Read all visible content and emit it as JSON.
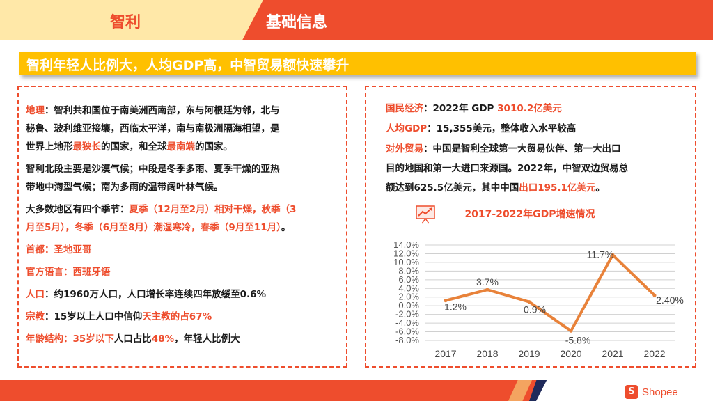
{
  "header": {
    "country": "智利",
    "section": "基础信息"
  },
  "headline": "智利年轻人比例大，人均GDP高，中智贸易额快速攀升",
  "left": {
    "geo": {
      "label": "地理",
      "t1": "：智利共和国位于南美洲西南部，东与阿根廷为邻，北与",
      "t2": "秘鲁、玻利维亚接壤，西临太平洋，南与南极洲隔海相望，是",
      "t3a": "世界上地形",
      "t3b": "最狭长",
      "t3c": "的国家，和全球",
      "t3d": "最南端",
      "t3e": "的国家。"
    },
    "climate": {
      "l1": "智利北段主要是沙漠气候；中段是冬季多雨、夏季干燥的亚热",
      "l2": "带地中海型气候；南为多雨的温带阔叶林气候。"
    },
    "seasons": {
      "l1a": "大多数地区有四个季节：",
      "l1b": "夏季（12月至2月）相对干燥，秋季（3",
      "l2a": "月至5月），冬季（6月至8月）潮湿寒冷，春季（9月至11月）",
      "l2b": "。"
    },
    "capital": {
      "label": "首都",
      "value": "：圣地亚哥"
    },
    "language": {
      "label": "官方语言",
      "value": "：西班牙语"
    },
    "population": {
      "label": "人口",
      "value": "：约1960万人口，人口增长率连续四年放缓至0.6%"
    },
    "religion": {
      "label": "宗教",
      "t1": "：15岁以上人口中信仰",
      "t2": "天主教的占67%"
    },
    "age": {
      "label": "年龄结构",
      "t1": "：",
      "t2": "35岁以下",
      "t3": "人口占比",
      "t4": "48%",
      "t5": "，年轻人比例大"
    }
  },
  "right": {
    "economy": {
      "label": "国民经济",
      "t1": "：2022年 GDP ",
      "t2": "3010.2亿美元"
    },
    "percapita": {
      "label": "人均GDP",
      "t1": "：15,355美元，整体收入水平较高"
    },
    "trade": {
      "label": "对外贸易",
      "t1": "：中国是智利全球第一大贸易伙伴、第一大出口",
      "l2": "目的地国和第一大进口来源国。2022年，中智双边贸易总",
      "l3a": "额达到625.5亿美元，其中中国",
      "l3b": "出口195.1亿美元",
      "l3c": "。"
    }
  },
  "chart_data": {
    "type": "line",
    "title": "2017-2022年GDP增速情况",
    "categories": [
      "2017",
      "2018",
      "2019",
      "2020",
      "2021",
      "2022"
    ],
    "values": [
      1.2,
      3.7,
      0.9,
      -5.8,
      11.7,
      2.4
    ],
    "data_labels": [
      "1.2%",
      "3.7%",
      "0.9%",
      "-5.8%",
      "11.7%",
      "2.40%"
    ],
    "yticks": [
      "14.0%",
      "12.0%",
      "10.0%",
      "8.0%",
      "6.0%",
      "4.0%",
      "2.0%",
      "0.0%",
      "-2.0%",
      "-4.0%",
      "-6.0%",
      "-8.0%"
    ],
    "ylim": [
      -8,
      14
    ],
    "grid": true,
    "line_color": "#E8823A"
  },
  "footer": {
    "brand": "Shopee",
    "bag_letter": "S"
  }
}
